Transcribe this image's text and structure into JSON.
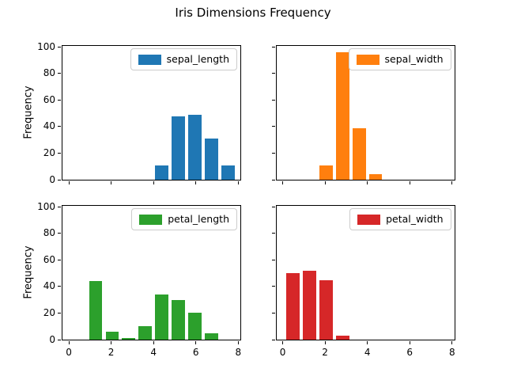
{
  "chart_data": {
    "type": "bar",
    "subtype": "histogram-grid",
    "title": "Iris Dimensions Frequency",
    "ylabel": "Frequency",
    "xlabel": "",
    "grid": false,
    "legend_position": "upper right",
    "xlim": [
      -0.3,
      8.1
    ],
    "ylim": [
      0,
      100.8
    ],
    "x_ticks": [
      0,
      2,
      4,
      6,
      8
    ],
    "y_ticks": [
      0,
      20,
      40,
      60,
      80,
      100
    ],
    "bin_start": 0.1,
    "bin_width": 0.78,
    "bar_relative_width": 0.8,
    "subplots": [
      {
        "name": "sepal_length",
        "color": "#1f77b4",
        "row": 0,
        "col": 0,
        "counts": [
          0,
          0,
          0,
          0,
          0,
          11,
          48,
          49,
          31,
          11
        ]
      },
      {
        "name": "sepal_width",
        "color": "#ff7f0e",
        "row": 0,
        "col": 1,
        "counts": [
          0,
          0,
          11,
          96,
          39,
          4,
          0,
          0,
          0,
          0
        ]
      },
      {
        "name": "petal_length",
        "color": "#2ca02c",
        "row": 1,
        "col": 0,
        "counts": [
          0,
          44,
          6,
          1,
          10,
          34,
          30,
          20,
          5,
          0
        ]
      },
      {
        "name": "petal_width",
        "color": "#d62728",
        "row": 1,
        "col": 1,
        "counts": [
          50,
          52,
          45,
          3,
          0,
          0,
          0,
          0,
          0,
          0
        ]
      }
    ]
  }
}
